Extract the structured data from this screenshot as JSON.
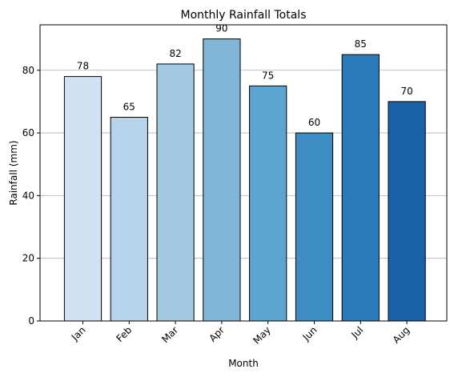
{
  "chart_data": {
    "type": "bar",
    "title": "Monthly Rainfall Totals",
    "xlabel": "Month",
    "ylabel": "Rainfall (mm)",
    "categories": [
      "Jan",
      "Feb",
      "Mar",
      "Apr",
      "May",
      "Jun",
      "Jul",
      "Aug"
    ],
    "values": [
      78,
      65,
      82,
      90,
      75,
      60,
      85,
      70
    ],
    "data_labels": [
      "78",
      "65",
      "82",
      "90",
      "75",
      "60",
      "85",
      "70"
    ],
    "ylim": [
      0,
      94.5
    ],
    "yticks": [
      0,
      20,
      40,
      60,
      80
    ],
    "ytick_labels": [
      "0",
      "20",
      "40",
      "60",
      "80"
    ],
    "grid": "horizontal",
    "legend": "none",
    "colors": [
      "#d0e1f2",
      "#b7d4ea",
      "#a1c9e2",
      "#80b5d8",
      "#5ba3d0",
      "#3e8ec4",
      "#2b7bba",
      "#1a62a8"
    ],
    "bar_edge_color": "#000000",
    "grid_color": "#b0b0b0"
  }
}
